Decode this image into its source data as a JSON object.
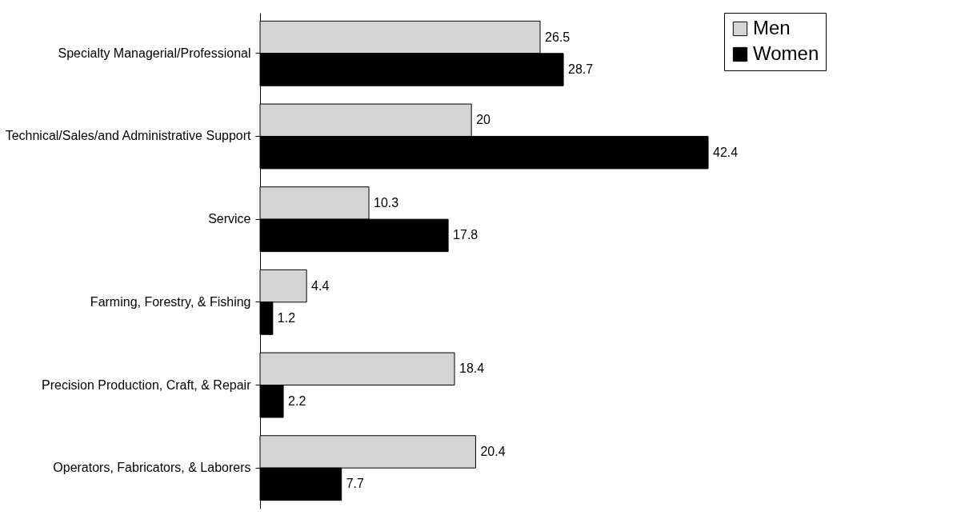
{
  "chart_data": {
    "type": "bar",
    "orientation": "horizontal",
    "categories": [
      "Specialty Managerial/Professional",
      "Technical/Sales/and Administrative Support",
      "Service",
      "Farming, Forestry, & Fishing",
      "Precision Production, Craft, & Repair",
      "Operators, Fabricators, & Laborers"
    ],
    "series": [
      {
        "name": "Men",
        "color": "#d4d4d4",
        "values": [
          26.5,
          20,
          10.3,
          4.4,
          18.4,
          20.4
        ]
      },
      {
        "name": "Women",
        "color": "#000000",
        "values": [
          28.7,
          42.4,
          17.8,
          1.2,
          2.2,
          7.7
        ]
      }
    ],
    "data_labels": true,
    "legend": "right",
    "grid": false
  }
}
